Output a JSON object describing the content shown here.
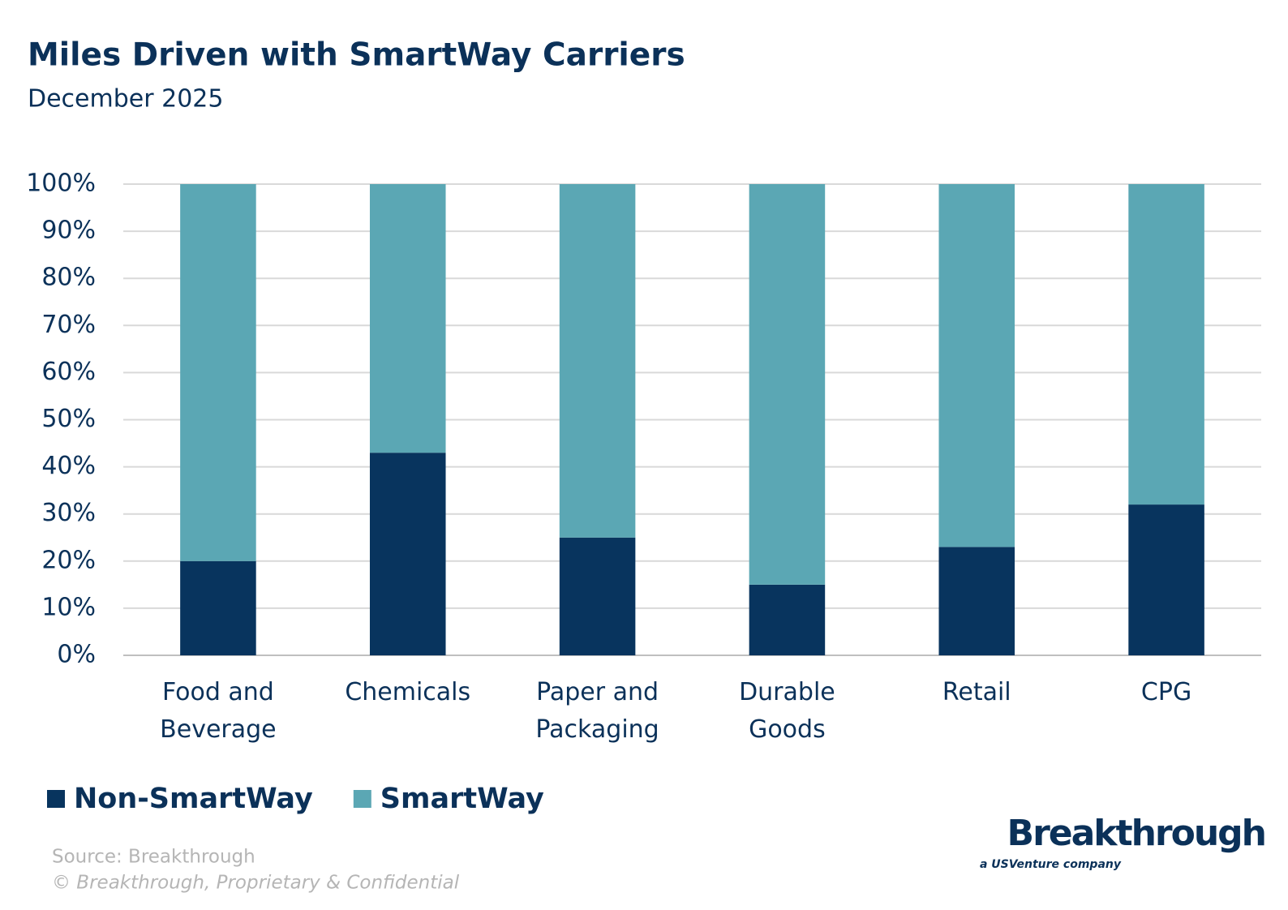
{
  "chart_data": {
    "type": "stacked_bar",
    "title": "Miles Driven with SmartWay Carriers",
    "subtitle": "December 2025",
    "categories": [
      "Food and Beverage",
      "Chemicals",
      "Paper and Packaging",
      "Durable Goods",
      "Retail",
      "CPG"
    ],
    "series": [
      {
        "name": "Non-SmartWay",
        "color": "#08345e",
        "values": [
          20,
          43,
          25,
          15,
          23,
          32
        ]
      },
      {
        "name": "SmartWay",
        "color": "#5ba7b4",
        "values": [
          80,
          57,
          75,
          85,
          77,
          68
        ]
      }
    ],
    "ylim": [
      0,
      100
    ],
    "yticks": [
      {
        "value": 0,
        "label": "0%"
      },
      {
        "value": 10,
        "label": "10%"
      },
      {
        "value": 20,
        "label": "20%"
      },
      {
        "value": 30,
        "label": "30%"
      },
      {
        "value": 40,
        "label": "40%"
      },
      {
        "value": 50,
        "label": "50%"
      },
      {
        "value": 60,
        "label": "60%"
      },
      {
        "value": 70,
        "label": "70%"
      },
      {
        "value": 80,
        "label": "80%"
      },
      {
        "value": 90,
        "label": "90%"
      },
      {
        "value": 100,
        "label": "100%"
      }
    ],
    "grid": true,
    "legend": "bottom-left",
    "source": "Source: Breakthrough",
    "copyright": "© Breakthrough, Proprietary & Confidential",
    "logo": {
      "name": "Breakthrough",
      "tagline": "a USVenture company"
    }
  }
}
